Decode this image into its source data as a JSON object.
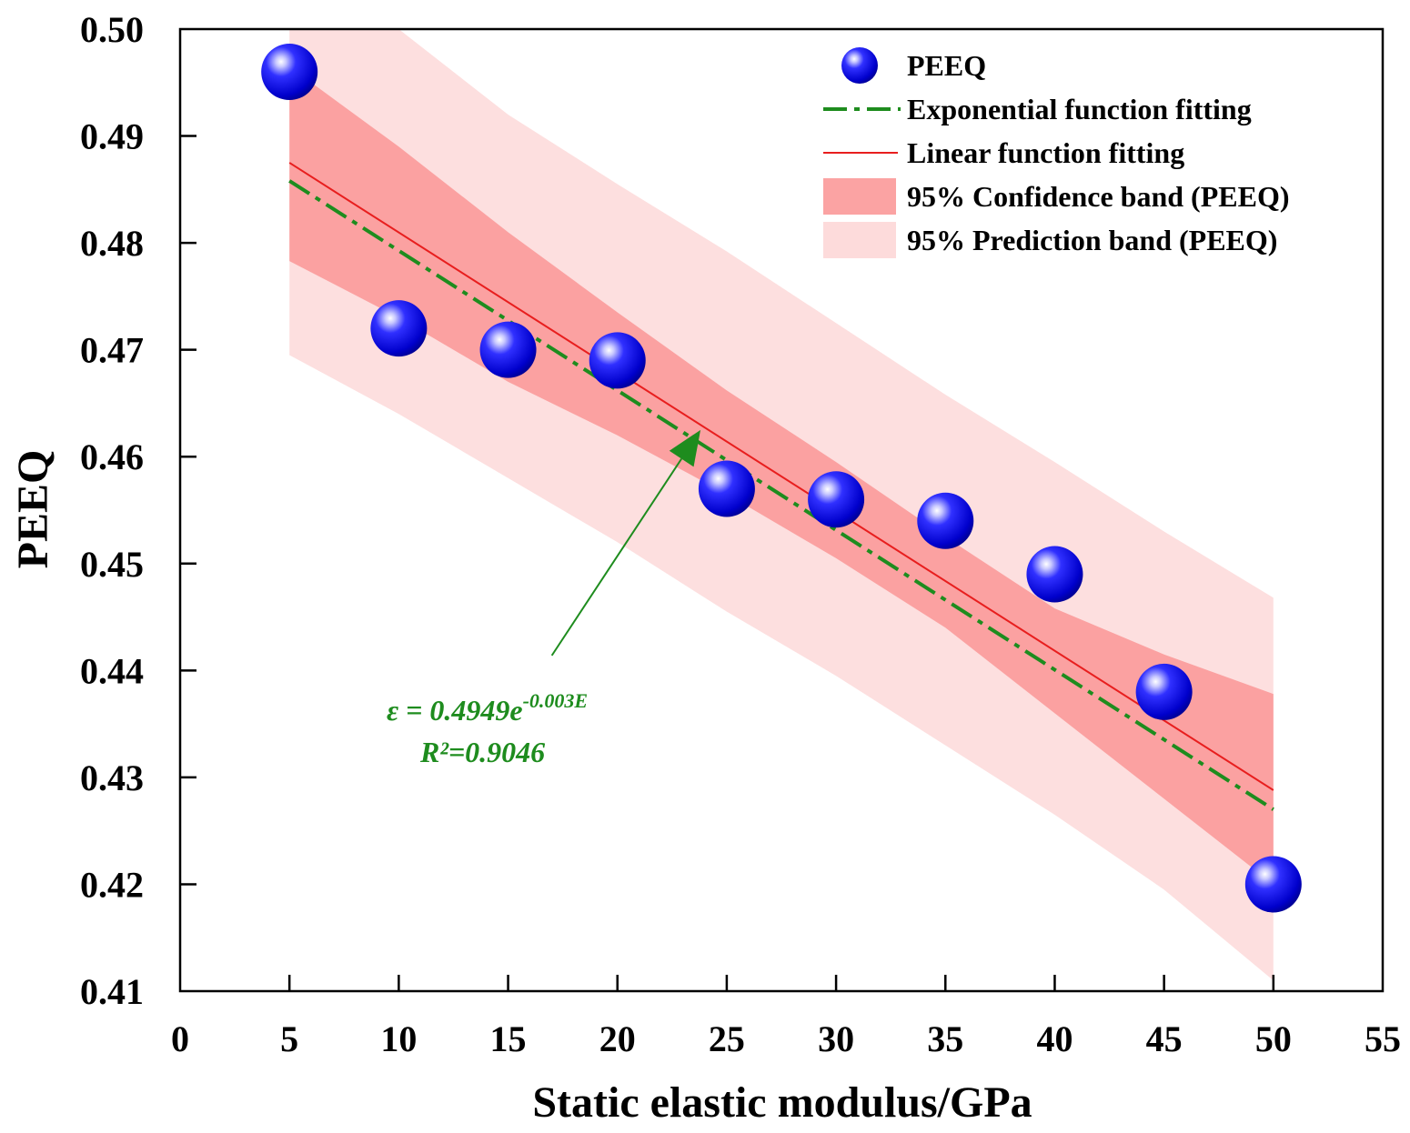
{
  "chart_data": {
    "type": "scatter",
    "title": "",
    "xlabel": "Static elastic modulus/GPa",
    "ylabel": "PEEQ",
    "xlim": [
      0,
      55
    ],
    "ylim": [
      0.41,
      0.5
    ],
    "xticks": [
      0,
      5,
      10,
      15,
      20,
      25,
      30,
      35,
      40,
      45,
      50,
      55
    ],
    "yticks": [
      0.41,
      0.42,
      0.43,
      0.44,
      0.45,
      0.46,
      0.47,
      0.48,
      0.49,
      0.5
    ],
    "xtick_labels": [
      "0",
      "5",
      "10",
      "15",
      "20",
      "25",
      "30",
      "35",
      "40",
      "45",
      "50",
      "55"
    ],
    "ytick_labels": [
      "0.41",
      "0.42",
      "0.43",
      "0.44",
      "0.45",
      "0.46",
      "0.47",
      "0.48",
      "0.49",
      "0.50"
    ],
    "grid": false,
    "legend_position": "top-right",
    "series": [
      {
        "name": "PEEQ",
        "kind": "scatter",
        "x": [
          5,
          10,
          15,
          20,
          25,
          30,
          35,
          40,
          45,
          50
        ],
        "y": [
          0.496,
          0.472,
          0.47,
          0.469,
          0.457,
          0.456,
          0.454,
          0.449,
          0.438,
          0.42
        ],
        "color": "#0a0ae6"
      },
      {
        "name": "Exponential function fitting",
        "kind": "line",
        "x": [
          5,
          50
        ],
        "y": [
          0.4858,
          0.427
        ],
        "color": "#1e8c1e",
        "style": "dash-dot"
      },
      {
        "name": "Linear function fitting",
        "kind": "line",
        "x": [
          5,
          50
        ],
        "y": [
          0.4875,
          0.4288
        ],
        "color": "#e81e1e",
        "style": "solid"
      },
      {
        "name": "95% Confidence band (PEEQ)",
        "kind": "band",
        "x": [
          5,
          10,
          15,
          20,
          25,
          30,
          35,
          40,
          45,
          50
        ],
        "lower": [
          0.4783,
          0.473,
          0.467,
          0.462,
          0.4565,
          0.4505,
          0.444,
          0.436,
          0.428,
          0.42
        ],
        "upper": [
          0.4965,
          0.489,
          0.481,
          0.4735,
          0.4662,
          0.4595,
          0.4525,
          0.4458,
          0.4415,
          0.4378
        ],
        "color": "#fa8c8c",
        "opacity": 0.75
      },
      {
        "name": "95% Prediction band (PEEQ)",
        "kind": "band",
        "x": [
          5,
          10,
          15,
          20,
          25,
          30,
          35,
          40,
          45,
          50
        ],
        "lower": [
          0.4695,
          0.464,
          0.458,
          0.452,
          0.4455,
          0.4395,
          0.433,
          0.4265,
          0.4195,
          0.411
        ],
        "upper": [
          0.5,
          0.5,
          0.492,
          0.4855,
          0.4792,
          0.4725,
          0.4658,
          0.4595,
          0.453,
          0.4468
        ],
        "color": "#fcd2d2",
        "opacity": 0.7
      }
    ],
    "legend": [
      {
        "label": "PEEQ",
        "kind": "marker"
      },
      {
        "label": "Exponential function fitting",
        "kind": "dashdot"
      },
      {
        "label": "Linear function fitting",
        "kind": "line"
      },
      {
        "label": "95% Confidence band (PEEQ)",
        "kind": "patch-dark"
      },
      {
        "label": "95% Prediction band (PEEQ)",
        "kind": "patch-light"
      }
    ],
    "annotation": {
      "eq_prefix": "ε = 0.4949e",
      "eq_exponent": "-0.003E",
      "r2_label": "R²=0.9046",
      "arrow_target": {
        "x": 23.8,
        "y": 0.4625
      },
      "arrow_tail": {
        "x": 17.0,
        "y": 0.4414
      },
      "color": "#1e8c1e"
    }
  }
}
